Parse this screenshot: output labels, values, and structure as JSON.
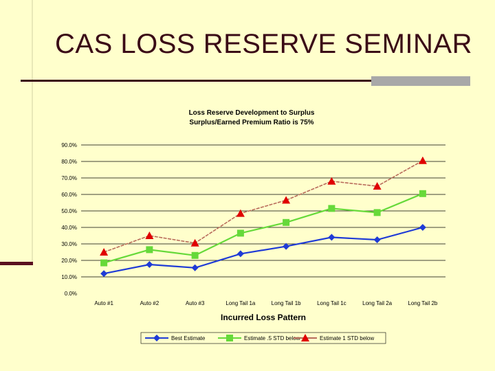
{
  "slide": {
    "title": "CAS LOSS RESERVE SEMINAR"
  },
  "chart_data": {
    "type": "line",
    "title": "Loss Reserve Development to Surplus",
    "subtitle": "Surplus/Earned Premium  Ratio is 75%",
    "xlabel": "Incurred Loss Pattern",
    "ylabel": "",
    "ylim": [
      0,
      90
    ],
    "yticks": [
      0,
      10,
      20,
      30,
      40,
      50,
      60,
      70,
      80,
      90
    ],
    "ytick_labels": [
      "0.0%",
      "10.0%",
      "20.0%",
      "30.0%",
      "40.0%",
      "50.0%",
      "60.0%",
      "70.0%",
      "80.0%",
      "90.0%"
    ],
    "grid": true,
    "legend_position": "bottom",
    "categories": [
      "Auto #1",
      "Auto #2",
      "Auto #3",
      "Long Tail 1a",
      "Long Tail 1b",
      "Long Tail 1c",
      "Long Tail 2a",
      "Long Tail 2b"
    ],
    "series": [
      {
        "name": "Best Estimate",
        "color": "#1F3BD6",
        "marker": "diamond",
        "values": [
          12,
          17.5,
          15.5,
          24,
          28.5,
          34,
          32.5,
          40
        ]
      },
      {
        "name": "Estimate .5 STD below",
        "color": "#66D93A",
        "marker": "square",
        "values": [
          18.5,
          26.5,
          23,
          36.5,
          43,
          51.5,
          49,
          60.5
        ]
      },
      {
        "name": "Estimate 1 STD below",
        "color": "#B86A5A",
        "marker": "triangle",
        "markerColor": "#E00000",
        "values": [
          25,
          35,
          30.5,
          48.5,
          56.5,
          68,
          65,
          80.5
        ]
      }
    ]
  }
}
